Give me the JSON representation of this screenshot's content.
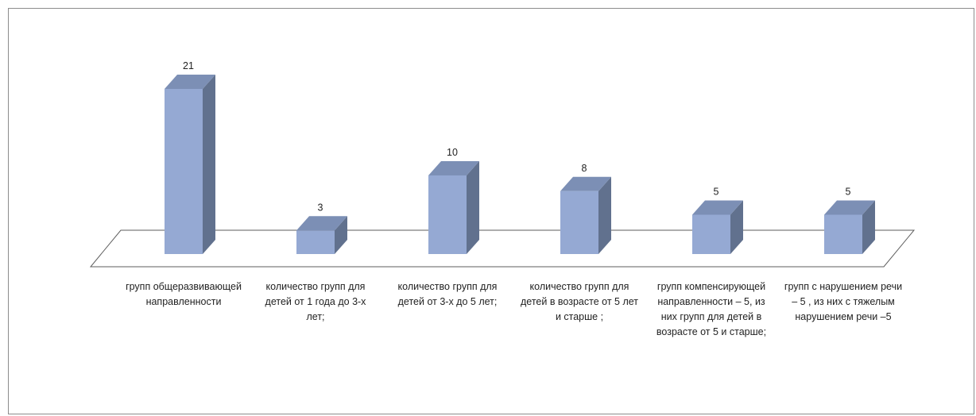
{
  "chart_data": {
    "type": "bar",
    "categories": [
      "групп общеразвивающей направленности",
      "количество групп для детей от 1 года до 3-х лет;",
      "количество групп для детей от 3-х до 5 лет;",
      "количество групп для детей в возрасте от 5 лет и старше ;",
      "групп компенсирующей направленности – 5, из них групп для детей в возрасте от 5 и старше;",
      "групп с нарушением речи – 5 , из них с тяжелым нарушением речи –5"
    ],
    "values": [
      21,
      3,
      10,
      8,
      5,
      5
    ],
    "data_labels": [
      "21",
      "3",
      "10",
      "8",
      "5",
      "5"
    ],
    "title": "",
    "xlabel": "",
    "ylabel": "",
    "ylim": [
      0,
      21
    ],
    "grid": false,
    "legend": "none",
    "colors": {
      "bar_front": "#95a9d3",
      "bar_side": "#61718e",
      "bar_top": "#7c8fb5",
      "floor_line": "#5e5e5e",
      "frame_border": "#8c8c8c"
    }
  }
}
